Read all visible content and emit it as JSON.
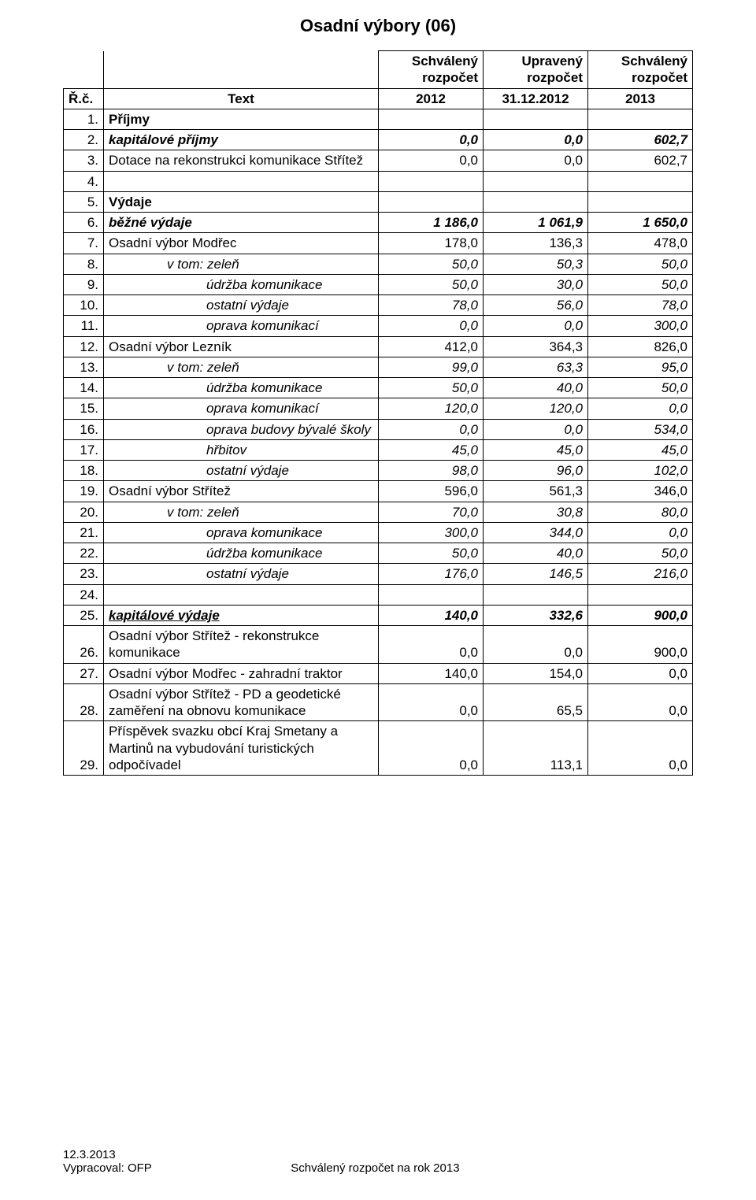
{
  "title": "Osadní výbory (06)",
  "header": {
    "approved": "Schválený",
    "adjusted": "Upravený",
    "budget": "rozpočet",
    "row_num": "Ř.č.",
    "text": "Text",
    "year_a": "2012",
    "year_b": "31.12.2012",
    "year_c": "2013"
  },
  "rows": [
    {
      "n": "1.",
      "label": "Příjmy",
      "v": [
        "",
        "",
        ""
      ],
      "style": "bold",
      "indent": 0
    },
    {
      "n": "2.",
      "label": "kapitálové příjmy",
      "v": [
        "0,0",
        "0,0",
        "602,7"
      ],
      "style": "bolditalic",
      "indent": 0
    },
    {
      "n": "3.",
      "label": "Dotace na rekonstrukci komunikace Střítež",
      "v": [
        "0,0",
        "0,0",
        "602,7"
      ],
      "style": "",
      "indent": 0
    },
    {
      "n": "4.",
      "label": "",
      "v": [
        "",
        "",
        ""
      ],
      "style": "",
      "indent": 0
    },
    {
      "n": "5.",
      "label": "Výdaje",
      "v": [
        "",
        "",
        ""
      ],
      "style": "bold",
      "indent": 0
    },
    {
      "n": "6.",
      "label": "běžné výdaje",
      "v": [
        "1 186,0",
        "1 061,9",
        "1 650,0"
      ],
      "style": "bolditalic",
      "indent": 0
    },
    {
      "n": "7.",
      "label": "Osadní výbor Modřec",
      "v": [
        "178,0",
        "136,3",
        "478,0"
      ],
      "style": "",
      "indent": 0
    },
    {
      "n": "8.",
      "label": "v tom: zeleň",
      "v": [
        "50,0",
        "50,3",
        "50,0"
      ],
      "style": "italic",
      "indent": 2
    },
    {
      "n": "9.",
      "label": "údržba komunikace",
      "v": [
        "50,0",
        "30,0",
        "50,0"
      ],
      "style": "italic",
      "indent": 3
    },
    {
      "n": "10.",
      "label": "ostatní výdaje",
      "v": [
        "78,0",
        "56,0",
        "78,0"
      ],
      "style": "italic",
      "indent": 3
    },
    {
      "n": "11.",
      "label": "oprava komunikací",
      "v": [
        "0,0",
        "0,0",
        "300,0"
      ],
      "style": "italic",
      "indent": 3
    },
    {
      "n": "12.",
      "label": "Osadní výbor Lezník",
      "v": [
        "412,0",
        "364,3",
        "826,0"
      ],
      "style": "",
      "indent": 0
    },
    {
      "n": "13.",
      "label": "v tom: zeleň",
      "v": [
        "99,0",
        "63,3",
        "95,0"
      ],
      "style": "italic",
      "indent": 2
    },
    {
      "n": "14.",
      "label": "údržba komunikace",
      "v": [
        "50,0",
        "40,0",
        "50,0"
      ],
      "style": "italic",
      "indent": 3
    },
    {
      "n": "15.",
      "label": "oprava komunikací",
      "v": [
        "120,0",
        "120,0",
        "0,0"
      ],
      "style": "italic",
      "indent": 3
    },
    {
      "n": "16.",
      "label": "oprava budovy bývalé školy",
      "v": [
        "0,0",
        "0,0",
        "534,0"
      ],
      "style": "italic",
      "indent": 3
    },
    {
      "n": "17.",
      "label": "hřbitov",
      "v": [
        "45,0",
        "45,0",
        "45,0"
      ],
      "style": "italic",
      "indent": 3
    },
    {
      "n": "18.",
      "label": "ostatní výdaje",
      "v": [
        "98,0",
        "96,0",
        "102,0"
      ],
      "style": "italic",
      "indent": 3
    },
    {
      "n": "19.",
      "label": "Osadní výbor Střítež",
      "v": [
        "596,0",
        "561,3",
        "346,0"
      ],
      "style": "",
      "indent": 0
    },
    {
      "n": "20.",
      "label": "v tom: zeleň",
      "v": [
        "70,0",
        "30,8",
        "80,0"
      ],
      "style": "italic",
      "indent": 2
    },
    {
      "n": "21.",
      "label": "oprava komunikace",
      "v": [
        "300,0",
        "344,0",
        "0,0"
      ],
      "style": "italic",
      "indent": 3
    },
    {
      "n": "22.",
      "label": "údržba komunikace",
      "v": [
        "50,0",
        "40,0",
        "50,0"
      ],
      "style": "italic",
      "indent": 3
    },
    {
      "n": "23.",
      "label": "ostatní výdaje",
      "v": [
        "176,0",
        "146,5",
        "216,0"
      ],
      "style": "italic",
      "indent": 3
    },
    {
      "n": "24.",
      "label": "",
      "v": [
        "",
        "",
        ""
      ],
      "style": "",
      "indent": 0
    },
    {
      "n": "25.",
      "label": "kapitálové výdaje",
      "v": [
        "140,0",
        "332,6",
        "900,0"
      ],
      "style": "bolditalic underline",
      "indent": 0
    },
    {
      "n": "26.",
      "label": "Osadní výbor Střítež - rekonstrukce komunikace",
      "v": [
        "0,0",
        "0,0",
        "900,0"
      ],
      "style": "",
      "indent": 0
    },
    {
      "n": "27.",
      "label": "Osadní výbor Modřec - zahradní traktor",
      "v": [
        "140,0",
        "154,0",
        "0,0"
      ],
      "style": "",
      "indent": 0
    },
    {
      "n": "28.",
      "label": "Osadní výbor Střítež - PD a geodetické zaměření na obnovu komunikace",
      "v": [
        "0,0",
        "65,5",
        "0,0"
      ],
      "style": "",
      "indent": 0
    },
    {
      "n": "29.",
      "label": "Příspěvek svazku obcí Kraj Smetany a Martinů na vybudování turistických odpočívadel",
      "v": [
        "0,0",
        "113,1",
        "0,0"
      ],
      "style": "",
      "indent": 0
    }
  ],
  "footer": {
    "date": "12.3.2013",
    "author": "Vypracoval: OFP",
    "center": "Schválený rozpočet na rok 2013"
  },
  "colors": {
    "text": "#000000",
    "background": "#ffffff",
    "border": "#000000"
  }
}
